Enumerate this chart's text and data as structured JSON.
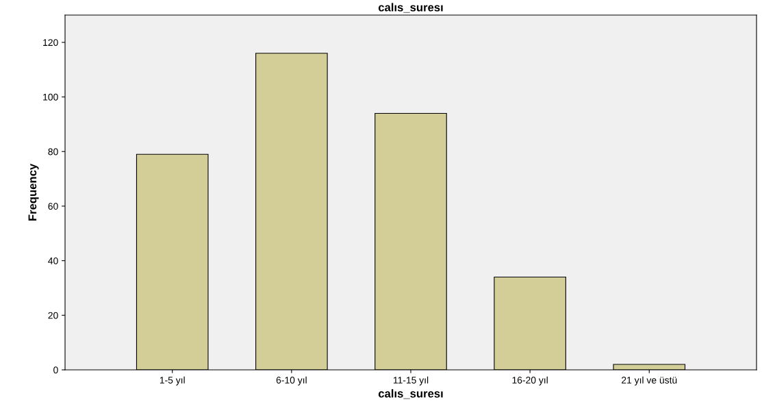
{
  "chart_data": {
    "type": "bar",
    "title": "calıs_suresı",
    "xlabel": "calıs_suresı",
    "ylabel": "Frequency",
    "categories": [
      "1-5 yıl",
      "6-10 yıl",
      "11-15 yıl",
      "16-20 yıl",
      "21 yıl ve üstü"
    ],
    "values": [
      79,
      116,
      94,
      34,
      2
    ],
    "color": "#d3ce97",
    "ylim": [
      0,
      130
    ],
    "yticks": [
      0,
      20,
      40,
      60,
      80,
      100,
      120
    ],
    "grid": false,
    "legend": false
  }
}
